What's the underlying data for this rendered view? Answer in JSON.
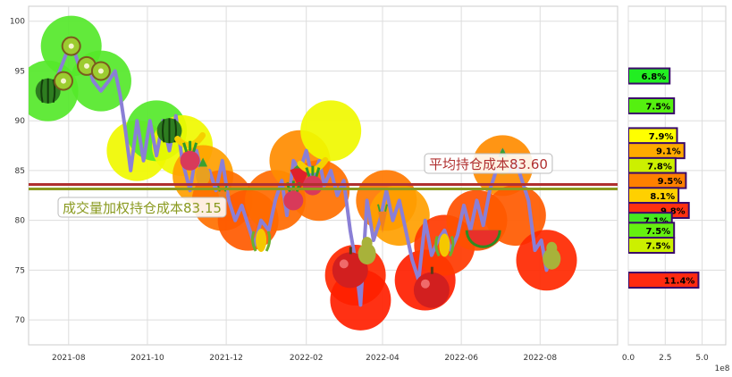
{
  "chart_data": [
    {
      "type": "line",
      "x_ticks": [
        "2021-08",
        "2021-10",
        "2021-12",
        "2022-02",
        "2022-04",
        "2022-06",
        "2022-08"
      ],
      "y_ticks": [
        70,
        75,
        80,
        85,
        90,
        95,
        100
      ],
      "xlim": [
        "2021-07-01",
        "2022-09-30"
      ],
      "ylim": [
        67.5,
        101.5
      ],
      "grid": true,
      "series": [
        {
          "color": "#8a7fd6",
          "points": [
            [
              "2021-07-16",
              93.5
            ],
            [
              "2021-07-22",
              94.0
            ],
            [
              "2021-07-28",
              96.0
            ],
            [
              "2021-08-03",
              98.0
            ],
            [
              "2021-08-09",
              95.5
            ],
            [
              "2021-08-15",
              96.0
            ],
            [
              "2021-08-20",
              94.0
            ],
            [
              "2021-08-26",
              93.0
            ],
            [
              "2021-09-01",
              94.0
            ],
            [
              "2021-09-06",
              95.0
            ],
            [
              "2021-09-10",
              92.5
            ],
            [
              "2021-09-14",
              89.0
            ],
            [
              "2021-09-18",
              85.0
            ],
            [
              "2021-09-23",
              90.0
            ],
            [
              "2021-09-28",
              86.0
            ],
            [
              "2021-10-03",
              90.0
            ],
            [
              "2021-10-08",
              86.5
            ],
            [
              "2021-10-13",
              90.0
            ],
            [
              "2021-10-18",
              87.0
            ],
            [
              "2021-10-23",
              90.5
            ],
            [
              "2021-10-28",
              86.0
            ],
            [
              "2021-11-03",
              83.0
            ],
            [
              "2021-11-08",
              87.0
            ],
            [
              "2021-11-13",
              84.0
            ],
            [
              "2021-11-18",
              85.0
            ],
            [
              "2021-11-23",
              83.0
            ],
            [
              "2021-11-28",
              86.0
            ],
            [
              "2021-12-03",
              82.0
            ],
            [
              "2021-12-08",
              80.0
            ],
            [
              "2021-12-13",
              81.5
            ],
            [
              "2021-12-18",
              79.5
            ],
            [
              "2021-12-23",
              77.5
            ],
            [
              "2021-12-28",
              80.0
            ],
            [
              "2022-01-03",
              79.0
            ],
            [
              "2022-01-08",
              82.0
            ],
            [
              "2022-01-13",
              84.0
            ],
            [
              "2022-01-17",
              80.5
            ],
            [
              "2022-01-22",
              86.0
            ],
            [
              "2022-01-27",
              85.0
            ],
            [
              "2022-02-01",
              87.0
            ],
            [
              "2022-02-06",
              84.0
            ],
            [
              "2022-02-11",
              86.0
            ],
            [
              "2022-02-15",
              83.5
            ],
            [
              "2022-02-20",
              85.0
            ],
            [
              "2022-02-25",
              82.5
            ],
            [
              "2022-03-02",
              84.0
            ],
            [
              "2022-03-07",
              79.0
            ],
            [
              "2022-03-11",
              76.0
            ],
            [
              "2022-03-15",
              71.5
            ],
            [
              "2022-03-20",
              82.0
            ],
            [
              "2022-03-25",
              78.0
            ],
            [
              "2022-03-30",
              80.0
            ],
            [
              "2022-04-04",
              83.0
            ],
            [
              "2022-04-09",
              80.0
            ],
            [
              "2022-04-14",
              82.0
            ],
            [
              "2022-04-19",
              79.0
            ],
            [
              "2022-04-24",
              76.0
            ],
            [
              "2022-04-29",
              74.0
            ],
            [
              "2022-05-04",
              80.0
            ],
            [
              "2022-05-09",
              76.5
            ],
            [
              "2022-05-14",
              78.0
            ],
            [
              "2022-05-19",
              79.0
            ],
            [
              "2022-05-24",
              77.0
            ],
            [
              "2022-05-29",
              78.5
            ],
            [
              "2022-06-03",
              81.5
            ],
            [
              "2022-06-08",
              79.0
            ],
            [
              "2022-06-13",
              82.0
            ],
            [
              "2022-06-18",
              79.5
            ],
            [
              "2022-06-23",
              83.0
            ],
            [
              "2022-06-28",
              85.0
            ],
            [
              "2022-07-03",
              87.0
            ],
            [
              "2022-07-08",
              85.0
            ],
            [
              "2022-07-13",
              86.0
            ],
            [
              "2022-07-18",
              84.0
            ],
            [
              "2022-07-23",
              82.0
            ],
            [
              "2022-07-28",
              77.0
            ],
            [
              "2022-08-02",
              78.0
            ],
            [
              "2022-08-06",
              75.0
            ],
            [
              "2022-08-10",
              77.0
            ]
          ]
        }
      ],
      "bubbles": [
        [
          "2021-07-16",
          93.0,
          "#55e82a"
        ],
        [
          "2021-08-03",
          97.5,
          "#55e82a"
        ],
        [
          "2021-08-26",
          94.0,
          "#55e82a"
        ],
        [
          "2021-09-23",
          87.0,
          "#f0f800"
        ],
        [
          "2021-10-08",
          89.0,
          "#55e82a"
        ],
        [
          "2021-10-28",
          87.5,
          "#f0f800"
        ],
        [
          "2021-11-13",
          84.5,
          "#ffa000"
        ],
        [
          "2021-11-28",
          82.0,
          "#ff7000"
        ],
        [
          "2021-12-18",
          80.0,
          "#ff5a00"
        ],
        [
          "2022-01-08",
          82.0,
          "#ff6a00"
        ],
        [
          "2022-01-27",
          86.0,
          "#ff8c00"
        ],
        [
          "2022-02-11",
          83.0,
          "#ff7000"
        ],
        [
          "2022-02-20",
          89.0,
          "#f0f800"
        ],
        [
          "2022-03-11",
          74.5,
          "#ff2800"
        ],
        [
          "2022-03-15",
          72.0,
          "#ff2000"
        ],
        [
          "2022-04-04",
          82.0,
          "#ff7800"
        ],
        [
          "2022-04-14",
          80.5,
          "#ffa000"
        ],
        [
          "2022-05-04",
          74.0,
          "#ff2000"
        ],
        [
          "2022-05-19",
          77.5,
          "#ff3a00"
        ],
        [
          "2022-06-13",
          80.0,
          "#ff5000"
        ],
        [
          "2022-07-03",
          85.5,
          "#ff8c00"
        ],
        [
          "2022-07-13",
          80.5,
          "#ff5a00"
        ],
        [
          "2022-08-06",
          76.0,
          "#ff2800"
        ]
      ],
      "fruits": [
        [
          "2021-07-16",
          93.0,
          "watermelon"
        ],
        [
          "2021-07-28",
          94.0,
          "kiwi"
        ],
        [
          "2021-08-03",
          97.5,
          "kiwi"
        ],
        [
          "2021-08-15",
          95.5,
          "kiwi"
        ],
        [
          "2021-08-26",
          95.0,
          "kiwi"
        ],
        [
          "2021-10-18",
          89.0,
          "watermelon"
        ],
        [
          "2021-11-03",
          88.0,
          "banana"
        ],
        [
          "2021-11-03",
          86.0,
          "radish"
        ],
        [
          "2021-11-13",
          84.5,
          "pineapple"
        ],
        [
          "2021-11-28",
          82.0,
          "carrot"
        ],
        [
          "2021-12-28",
          78.0,
          "corn"
        ],
        [
          "2022-01-27",
          84.5,
          "strawberry"
        ],
        [
          "2022-01-22",
          82.0,
          "radish"
        ],
        [
          "2022-02-06",
          85.5,
          "banana"
        ],
        [
          "2022-02-06",
          83.5,
          "radish"
        ],
        [
          "2022-03-07",
          75.0,
          "apple"
        ],
        [
          "2022-03-20",
          77.0,
          "pear"
        ],
        [
          "2022-04-01",
          80.0,
          "carrot"
        ],
        [
          "2022-05-09",
          73.0,
          "apple"
        ],
        [
          "2022-05-19",
          77.5,
          "corn"
        ],
        [
          "2022-06-18",
          79.0,
          "watermelon-slice"
        ],
        [
          "2022-07-03",
          85.5,
          "pineapple"
        ],
        [
          "2022-08-10",
          76.5,
          "pear"
        ]
      ],
      "ref_lines": [
        {
          "y": 83.6,
          "color": "#b03030",
          "label": "平均持仓成本83.60"
        },
        {
          "y": 83.15,
          "color": "#8a9a20",
          "label": "成交量加权持仓成本83.15"
        }
      ]
    },
    {
      "type": "bar",
      "orientation": "horizontal",
      "x_ticks": [
        "0.0",
        "2.5",
        "5.0"
      ],
      "xlim": [
        0,
        6.6
      ],
      "x_scale_label": "1e8",
      "bars": [
        {
          "y": 94.5,
          "value": 2.8,
          "label": "6.8%",
          "color": "#22ee22"
        },
        {
          "y": 91.5,
          "value": 3.1,
          "label": "7.5%",
          "color": "#55f010"
        },
        {
          "y": 88.5,
          "value": 3.3,
          "label": "7.9%",
          "color": "#ffff00"
        },
        {
          "y": 87.0,
          "value": 3.8,
          "label": "9.1%",
          "color": "#ffaa00"
        },
        {
          "y": 85.5,
          "value": 3.2,
          "label": "7.8%",
          "color": "#ccf000"
        },
        {
          "y": 84.0,
          "value": 3.9,
          "label": "9.5%",
          "color": "#ff8000"
        },
        {
          "y": 82.5,
          "value": 3.4,
          "label": "8.1%",
          "color": "#ffd000"
        },
        {
          "y": 81.0,
          "value": 4.1,
          "label": "9.8%",
          "color": "#ff3010"
        },
        {
          "y": 80.0,
          "value": 2.95,
          "label": "7.1%",
          "color": "#44e820"
        },
        {
          "y": 79.0,
          "value": 3.1,
          "label": "7.5%",
          "color": "#66f010"
        },
        {
          "y": 77.5,
          "value": 3.1,
          "label": "7.5%",
          "color": "#ccf000"
        },
        {
          "y": 74.0,
          "value": 4.75,
          "label": "11.4%",
          "color": "#ff2a10"
        }
      ]
    }
  ]
}
